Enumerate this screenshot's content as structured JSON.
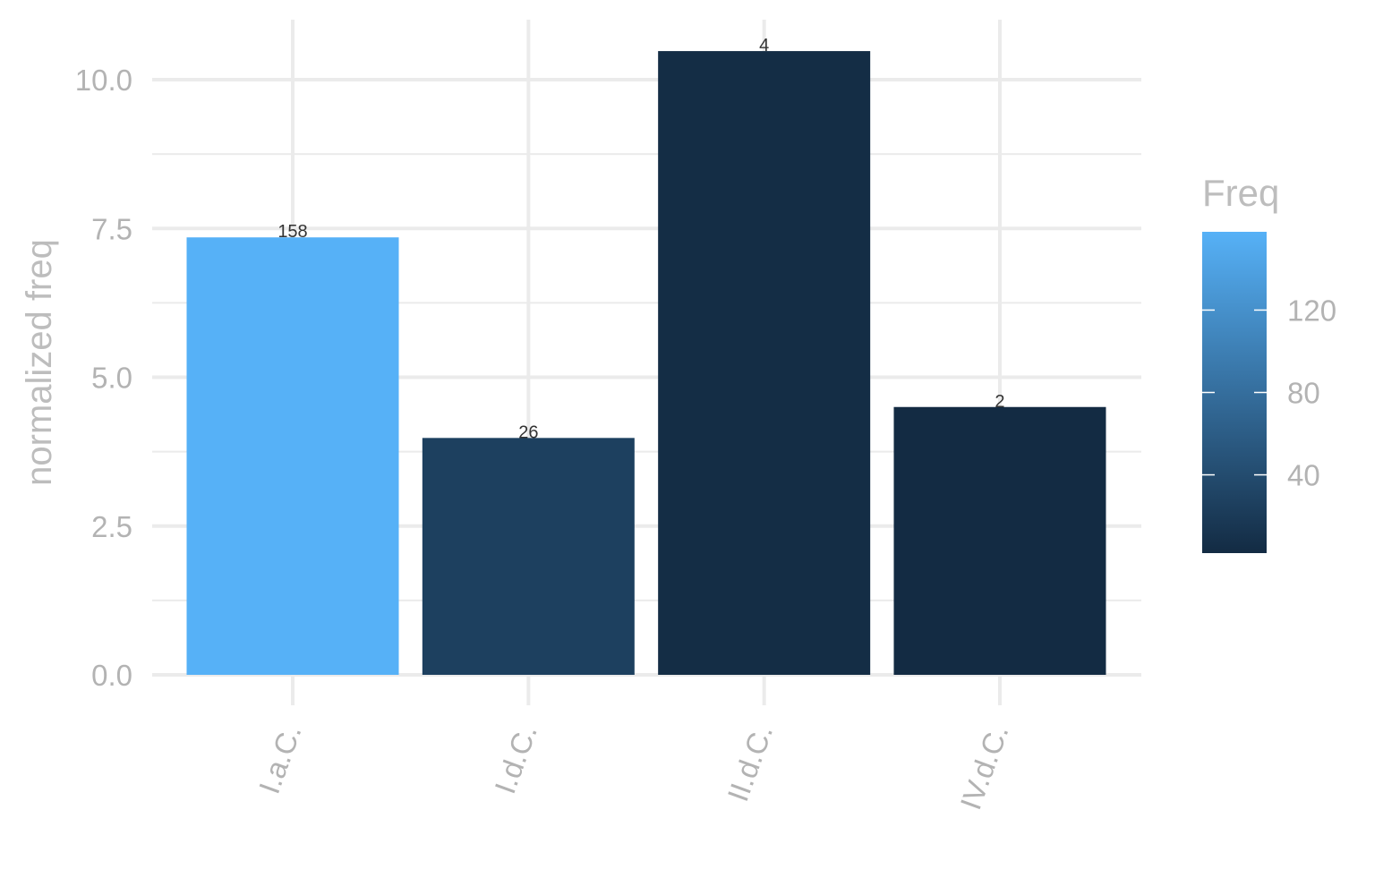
{
  "chart_data": {
    "type": "bar",
    "title": "",
    "xlabel": "",
    "ylabel": "normalized freq",
    "categories": [
      "I.a.C.",
      "I.d.C.",
      "II.d.C.",
      "IV.d.C."
    ],
    "values": [
      7.35,
      3.98,
      10.48,
      4.5
    ],
    "freq_labels": [
      "158",
      "26",
      "4",
      "2"
    ],
    "freq_values": [
      158,
      26,
      4,
      2
    ],
    "ylim": [
      0,
      10.5
    ],
    "yticks": [
      0,
      2.5,
      5,
      7.5,
      10
    ],
    "ytick_labels": [
      "0.0",
      "2.5",
      "5.0",
      "7.5",
      "10.0"
    ],
    "grid": true,
    "legend": {
      "title": "Freq",
      "placement": "right",
      "type": "colorbar",
      "range": [
        2,
        158
      ],
      "ticks": [
        40,
        80,
        120
      ],
      "tick_labels": [
        "40",
        "80",
        "120"
      ],
      "color_low": "#132B43",
      "color_high": "#56B1F7"
    }
  }
}
